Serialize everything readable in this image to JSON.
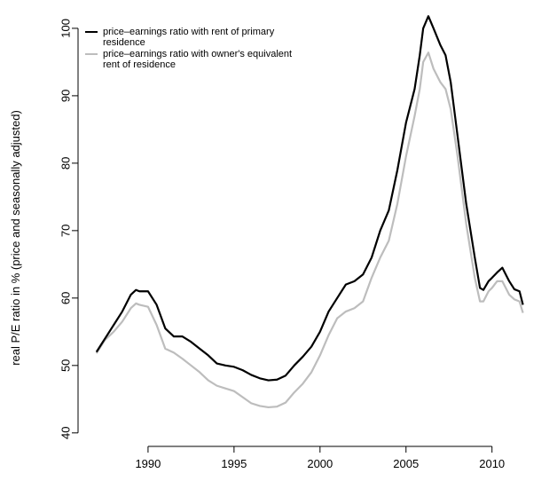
{
  "chart_data": {
    "type": "line",
    "ylabel": "real P/E ratio in % (price and seasonally adjusted)",
    "x": [
      1987.0,
      1987.5,
      1988.0,
      1988.5,
      1989.0,
      1989.3,
      1989.5,
      1990.0,
      1990.5,
      1991.0,
      1991.5,
      1992.0,
      1992.5,
      1993.0,
      1993.5,
      1994.0,
      1994.5,
      1995.0,
      1995.5,
      1996.0,
      1996.5,
      1997.0,
      1997.5,
      1998.0,
      1998.5,
      1999.0,
      1999.5,
      2000.0,
      2000.5,
      2001.0,
      2001.5,
      2002.0,
      2002.5,
      2003.0,
      2003.5,
      2004.0,
      2004.5,
      2005.0,
      2005.5,
      2005.8,
      2006.0,
      2006.3,
      2006.6,
      2007.0,
      2007.3,
      2007.6,
      2008.0,
      2008.5,
      2009.0,
      2009.3,
      2009.5,
      2009.8,
      2010.0,
      2010.3,
      2010.6,
      2011.0,
      2011.3,
      2011.6,
      2011.8
    ],
    "series": [
      {
        "name": "price–earnings ratio with rent of primary residence",
        "color": "#000000",
        "values": [
          52,
          54,
          56,
          58,
          60.5,
          61.2,
          61,
          61,
          59,
          55.5,
          54.3,
          54.3,
          53.5,
          52.5,
          51.5,
          50.3,
          50,
          49.8,
          49.3,
          48.6,
          48.1,
          47.8,
          47.9,
          48.5,
          50,
          51.3,
          52.8,
          55,
          58,
          60,
          62,
          62.5,
          63.5,
          66,
          70,
          73,
          79,
          86,
          91,
          96,
          100,
          101.8,
          100,
          97.5,
          96,
          92,
          84,
          74,
          66,
          61.5,
          61.2,
          62.5,
          63,
          63.8,
          64.5,
          62.5,
          61.3,
          61,
          59
        ]
      },
      {
        "name": "price–earnings ratio with owner's equivalent rent of residence",
        "color": "#bdbdbd",
        "values": [
          51.8,
          53.8,
          55,
          56.5,
          58.5,
          59.2,
          59,
          58.7,
          56,
          52.5,
          51.9,
          51,
          50,
          49,
          47.8,
          47,
          46.6,
          46.2,
          45.3,
          44.4,
          44,
          43.8,
          43.9,
          44.5,
          46,
          47.3,
          49,
          51.5,
          54.5,
          57,
          58,
          58.5,
          59.5,
          63,
          66,
          68.5,
          74,
          81,
          87,
          91,
          95,
          96.4,
          94,
          92,
          91,
          88,
          81,
          71,
          63,
          59.5,
          59.5,
          61,
          61.5,
          62.5,
          62.5,
          60.5,
          59.8,
          59.5,
          57.8
        ]
      }
    ],
    "xlim": [
      1985.93,
      2012.8
    ],
    "ylim": [
      38,
      104.2
    ],
    "xticks": [
      1990,
      1995,
      2000,
      2005,
      2010
    ],
    "yticks": [
      40,
      50,
      60,
      70,
      80,
      90,
      100
    ],
    "legend": "top-left"
  }
}
